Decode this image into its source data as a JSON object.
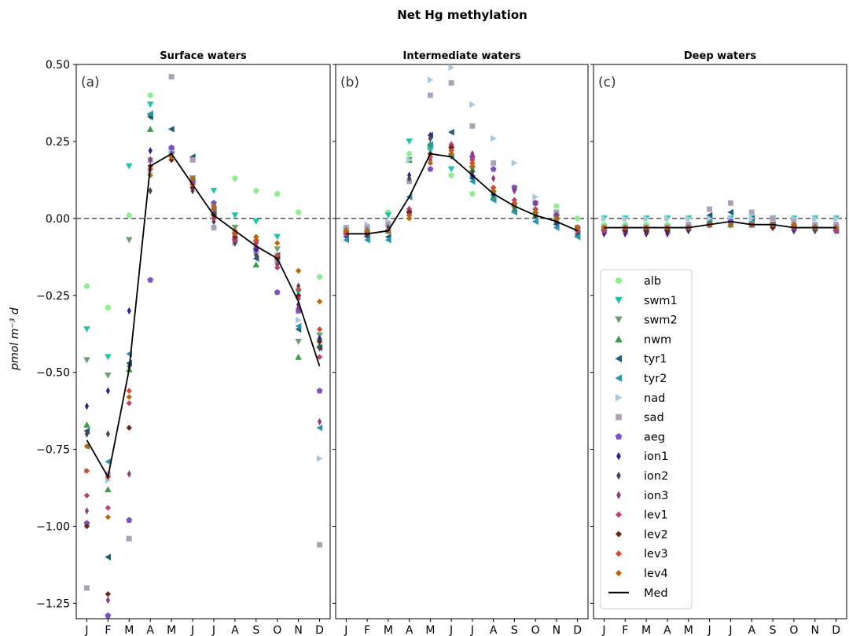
{
  "chart_data": {
    "type": "scatter",
    "title": "Net Hg methylation",
    "ylabel": "pmol m⁻³ d",
    "ylim": [
      -1.3,
      0.5
    ],
    "yticks": [
      0.5,
      0.25,
      0.0,
      -0.25,
      -0.5,
      -0.75,
      -1.0,
      -1.25
    ],
    "ytick_labels": [
      "0.50",
      "0.25",
      "0.00",
      "−0.25",
      "−0.50",
      "−0.75",
      "−1.00",
      "−1.25"
    ],
    "categories": [
      "J",
      "F",
      "M",
      "A",
      "M",
      "J",
      "J",
      "A",
      "S",
      "O",
      "N",
      "D"
    ],
    "reference_line": 0.0,
    "legend_placement": "lower-right of panel (c)",
    "styles": {
      "alb": {
        "color": "#90ee90",
        "marker": "o"
      },
      "swm1": {
        "color": "#1cc4a8",
        "marker": "v"
      },
      "swm2": {
        "color": "#6e9c74",
        "marker": "v"
      },
      "nwm": {
        "color": "#3c9c46",
        "marker": "^"
      },
      "tyr1": {
        "color": "#1f5f74",
        "marker": "<"
      },
      "tyr2": {
        "color": "#2d94b0",
        "marker": "<"
      },
      "nad": {
        "color": "#a8c8dc",
        "marker": ">"
      },
      "sad": {
        "color": "#aca0b8",
        "marker": "s"
      },
      "aeg": {
        "color": "#7b52c0",
        "marker": "p"
      },
      "ion1": {
        "color": "#3a1d8c",
        "marker": "d"
      },
      "ion2": {
        "color": "#4a4456",
        "marker": "d"
      },
      "ion3": {
        "color": "#8c3c7c",
        "marker": "d"
      },
      "lev1": {
        "color": "#c03c70",
        "marker": "D"
      },
      "lev2": {
        "color": "#6a2418",
        "marker": "D"
      },
      "lev3": {
        "color": "#d04c30",
        "marker": "D"
      },
      "lev4": {
        "color": "#b8660c",
        "marker": "D"
      },
      "Med": {
        "color": "#000000",
        "marker": "line"
      }
    },
    "panels": [
      {
        "title": "Surface waters",
        "label": "(a)",
        "series": [
          {
            "name": "alb",
            "values": [
              -0.22,
              -0.29,
              0.01,
              0.4,
              0.22,
              0.13,
              0.02,
              0.13,
              0.09,
              0.08,
              0.02,
              -0.19
            ]
          },
          {
            "name": "swm1",
            "values": [
              -0.36,
              -0.45,
              0.17,
              0.37,
              0.22,
              0.13,
              0.09,
              0.01,
              -0.01,
              -0.06,
              -0.24,
              -0.4
            ]
          },
          {
            "name": "swm2",
            "values": [
              -0.46,
              -0.51,
              -0.07,
              0.33,
              0.21,
              0.13,
              0.03,
              -0.03,
              -0.08,
              -0.1,
              -0.4,
              -0.38
            ]
          },
          {
            "name": "nwm",
            "values": [
              -0.67,
              -0.88,
              -0.49,
              0.29,
              0.22,
              0.12,
              0.02,
              -0.04,
              -0.15,
              -0.12,
              -0.45,
              -0.41
            ]
          },
          {
            "name": "tyr1",
            "values": [
              -0.69,
              -1.1,
              -0.47,
              0.33,
              0.29,
              0.2,
              0.02,
              -0.07,
              -0.13,
              -0.12,
              -0.36,
              -0.42
            ]
          },
          {
            "name": "tyr2",
            "values": [
              -0.74,
              -0.79,
              -0.44,
              0.34,
              0.22,
              0.12,
              0.03,
              -0.07,
              -0.1,
              -0.14,
              -0.35,
              -0.68
            ]
          },
          {
            "name": "nad",
            "values": [
              -0.82,
              -0.85,
              -1.04,
              0.15,
              0.22,
              0.12,
              0.03,
              -0.08,
              -0.1,
              -0.12,
              -0.33,
              -0.78
            ]
          },
          {
            "name": "sad",
            "values": [
              -1.2,
              -0.83,
              -1.04,
              0.19,
              0.46,
              0.19,
              -0.03,
              -0.06,
              -0.11,
              -0.14,
              -0.3,
              -1.06
            ]
          },
          {
            "name": "aeg",
            "values": [
              -0.99,
              -1.29,
              -0.98,
              -0.2,
              0.23,
              0.12,
              0.05,
              -0.07,
              -0.1,
              -0.24,
              -0.3,
              -0.56
            ]
          },
          {
            "name": "ion1",
            "values": [
              -0.61,
              -0.56,
              -0.3,
              0.22,
              0.21,
              0.11,
              0.0,
              -0.05,
              -0.1,
              -0.13,
              -0.28,
              -0.39
            ]
          },
          {
            "name": "ion2",
            "values": [
              -0.7,
              -0.7,
              -0.48,
              0.09,
              0.2,
              0.09,
              -0.01,
              -0.08,
              -0.12,
              -0.13,
              -0.22,
              -0.42
            ]
          },
          {
            "name": "ion3",
            "values": [
              -0.95,
              -1.24,
              -0.83,
              0.19,
              0.21,
              0.11,
              0.01,
              -0.06,
              -0.09,
              -0.15,
              -0.29,
              -0.66
            ]
          },
          {
            "name": "lev1",
            "values": [
              -0.9,
              -0.94,
              -0.6,
              0.16,
              0.2,
              0.1,
              0.0,
              -0.07,
              -0.08,
              -0.16,
              -0.26,
              -0.45
            ]
          },
          {
            "name": "lev2",
            "values": [
              -1.0,
              -1.22,
              -0.68,
              0.17,
              0.19,
              0.1,
              0.01,
              -0.06,
              -0.06,
              -0.13,
              -0.25,
              -0.4
            ]
          },
          {
            "name": "lev3",
            "values": [
              -0.82,
              -0.84,
              -0.56,
              0.16,
              0.2,
              0.11,
              0.03,
              -0.05,
              -0.07,
              -0.12,
              -0.23,
              -0.36
            ]
          },
          {
            "name": "lev4",
            "values": [
              -0.74,
              -0.97,
              -0.58,
              0.14,
              0.2,
              0.13,
              0.04,
              -0.04,
              -0.06,
              -0.08,
              -0.17,
              -0.27
            ]
          },
          {
            "name": "Med",
            "values": [
              -0.72,
              -0.84,
              -0.49,
              0.17,
              0.21,
              0.11,
              0.01,
              -0.04,
              -0.09,
              -0.13,
              -0.27,
              -0.48
            ]
          }
        ]
      },
      {
        "title": "Intermediate waters",
        "label": "(b)",
        "series": [
          {
            "name": "alb",
            "values": [
              -0.03,
              -0.03,
              0.02,
              0.21,
              0.24,
              0.14,
              0.08,
              0.07,
              0.04,
              0.03,
              0.04,
              0.0
            ]
          },
          {
            "name": "swm1",
            "values": [
              -0.04,
              -0.04,
              0.01,
              0.25,
              0.22,
              0.16,
              0.13,
              0.07,
              0.03,
              0.01,
              0.0,
              -0.04
            ]
          },
          {
            "name": "swm2",
            "values": [
              -0.05,
              -0.05,
              -0.03,
              0.19,
              0.23,
              0.2,
              0.16,
              0.08,
              0.04,
              0.01,
              -0.01,
              -0.05
            ]
          },
          {
            "name": "nwm",
            "values": [
              -0.04,
              -0.05,
              -0.04,
              0.19,
              0.24,
              0.21,
              0.16,
              0.07,
              0.03,
              0.01,
              -0.01,
              -0.05
            ]
          },
          {
            "name": "tyr1",
            "values": [
              -0.06,
              -0.06,
              -0.06,
              0.07,
              0.27,
              0.28,
              0.13,
              0.06,
              0.02,
              -0.01,
              -0.02,
              -0.05
            ]
          },
          {
            "name": "tyr2",
            "values": [
              -0.07,
              -0.07,
              -0.07,
              0.07,
              0.24,
              0.2,
              0.12,
              0.06,
              0.02,
              -0.01,
              -0.03,
              -0.06
            ]
          },
          {
            "name": "nad",
            "values": [
              -0.04,
              -0.02,
              -0.01,
              0.19,
              0.45,
              0.49,
              0.37,
              0.26,
              0.18,
              0.07,
              0.02,
              -0.04
            ]
          },
          {
            "name": "sad",
            "values": [
              -0.03,
              -0.03,
              -0.02,
              0.12,
              0.4,
              0.44,
              0.3,
              0.18,
              0.1,
              0.05,
              0.02,
              -0.03
            ]
          },
          {
            "name": "aeg",
            "values": [
              -0.05,
              -0.05,
              -0.04,
              0.02,
              0.16,
              0.23,
              0.2,
              0.16,
              0.1,
              0.05,
              0.01,
              -0.03
            ]
          },
          {
            "name": "ion1",
            "values": [
              -0.05,
              -0.05,
              -0.04,
              0.14,
              0.27,
              0.22,
              0.14,
              0.08,
              0.04,
              0.01,
              -0.01,
              -0.04
            ]
          },
          {
            "name": "ion2",
            "values": [
              -0.04,
              -0.04,
              -0.03,
              0.13,
              0.26,
              0.22,
              0.15,
              0.09,
              0.05,
              0.02,
              0.0,
              -0.04
            ]
          },
          {
            "name": "ion3",
            "values": [
              -0.05,
              -0.05,
              -0.04,
              0.03,
              0.19,
              0.24,
              0.21,
              0.13,
              0.09,
              0.05,
              0.01,
              -0.03
            ]
          },
          {
            "name": "lev1",
            "values": [
              -0.05,
              -0.05,
              -0.04,
              0.03,
              0.2,
              0.24,
              0.19,
              0.1,
              0.06,
              0.03,
              0.0,
              -0.04
            ]
          },
          {
            "name": "lev2",
            "values": [
              -0.04,
              -0.05,
              -0.04,
              0.02,
              0.21,
              0.23,
              0.18,
              0.1,
              0.05,
              0.02,
              0.0,
              -0.03
            ]
          },
          {
            "name": "lev3",
            "values": [
              -0.04,
              -0.04,
              -0.04,
              0.01,
              0.2,
              0.22,
              0.18,
              0.1,
              0.05,
              0.02,
              0.0,
              -0.03
            ]
          },
          {
            "name": "lev4",
            "values": [
              -0.04,
              -0.04,
              -0.04,
              0.0,
              0.18,
              0.21,
              0.17,
              0.09,
              0.04,
              0.02,
              0.0,
              -0.03
            ]
          },
          {
            "name": "Med",
            "values": [
              -0.05,
              -0.05,
              -0.04,
              0.07,
              0.21,
              0.2,
              0.14,
              0.08,
              0.04,
              0.01,
              -0.01,
              -0.04
            ]
          }
        ]
      },
      {
        "title": "Deep waters",
        "label": "(c)",
        "series": [
          {
            "name": "alb",
            "values": [
              -0.02,
              -0.02,
              -0.02,
              -0.02,
              -0.02,
              -0.01,
              -0.01,
              -0.01,
              -0.02,
              -0.02,
              -0.02,
              -0.02
            ]
          },
          {
            "name": "swm1",
            "values": [
              0.0,
              0.0,
              0.0,
              0.0,
              0.0,
              0.0,
              0.0,
              0.0,
              0.0,
              0.0,
              0.0,
              0.0
            ]
          },
          {
            "name": "swm2",
            "values": [
              -0.03,
              -0.03,
              -0.03,
              -0.03,
              -0.03,
              -0.02,
              -0.02,
              -0.02,
              -0.02,
              -0.03,
              -0.03,
              -0.03
            ]
          },
          {
            "name": "nwm",
            "values": [
              -0.03,
              -0.03,
              -0.03,
              -0.03,
              -0.03,
              -0.02,
              -0.02,
              -0.02,
              -0.02,
              -0.03,
              -0.03,
              -0.03
            ]
          },
          {
            "name": "tyr1",
            "values": [
              -0.04,
              -0.04,
              -0.04,
              -0.04,
              -0.03,
              0.01,
              0.02,
              0.0,
              -0.02,
              -0.03,
              -0.03,
              -0.04
            ]
          },
          {
            "name": "tyr2",
            "values": [
              -0.04,
              -0.04,
              -0.04,
              -0.04,
              -0.03,
              -0.01,
              -0.01,
              -0.02,
              -0.02,
              -0.03,
              -0.03,
              -0.03
            ]
          },
          {
            "name": "nad",
            "values": [
              0.0,
              0.0,
              0.0,
              0.0,
              0.0,
              0.0,
              0.0,
              0.0,
              0.0,
              0.0,
              0.0,
              0.0
            ]
          },
          {
            "name": "sad",
            "values": [
              -0.03,
              -0.03,
              -0.03,
              -0.03,
              -0.02,
              0.03,
              0.05,
              0.02,
              0.0,
              -0.01,
              -0.02,
              -0.02
            ]
          },
          {
            "name": "aeg",
            "values": [
              -0.04,
              -0.04,
              -0.04,
              -0.04,
              -0.03,
              -0.02,
              -0.01,
              -0.02,
              -0.02,
              -0.03,
              -0.03,
              -0.04
            ]
          },
          {
            "name": "ion1",
            "values": [
              -0.05,
              -0.05,
              -0.05,
              -0.05,
              -0.04,
              -0.02,
              -0.02,
              -0.02,
              -0.03,
              -0.04,
              -0.04,
              -0.04
            ]
          },
          {
            "name": "ion2",
            "values": [
              -0.04,
              -0.04,
              -0.04,
              -0.04,
              -0.03,
              -0.02,
              -0.02,
              -0.02,
              -0.03,
              -0.03,
              -0.04,
              -0.04
            ]
          },
          {
            "name": "ion3",
            "values": [
              -0.04,
              -0.04,
              -0.04,
              -0.04,
              -0.03,
              -0.02,
              -0.02,
              -0.02,
              -0.03,
              -0.03,
              -0.03,
              -0.03
            ]
          },
          {
            "name": "lev1",
            "values": [
              -0.04,
              -0.04,
              -0.04,
              -0.04,
              -0.03,
              -0.02,
              -0.02,
              -0.02,
              -0.03,
              -0.03,
              -0.03,
              -0.04
            ]
          },
          {
            "name": "lev2",
            "values": [
              -0.03,
              -0.04,
              -0.04,
              -0.04,
              -0.03,
              -0.02,
              -0.02,
              -0.02,
              -0.03,
              -0.03,
              -0.03,
              -0.03
            ]
          },
          {
            "name": "lev3",
            "values": [
              -0.03,
              -0.03,
              -0.03,
              -0.03,
              -0.03,
              -0.02,
              -0.02,
              -0.02,
              -0.02,
              -0.03,
              -0.03,
              -0.03
            ]
          },
          {
            "name": "lev4",
            "values": [
              -0.03,
              -0.03,
              -0.03,
              -0.03,
              -0.03,
              -0.02,
              -0.02,
              -0.02,
              -0.02,
              -0.02,
              -0.03,
              -0.03
            ]
          },
          {
            "name": "Med",
            "values": [
              -0.03,
              -0.03,
              -0.03,
              -0.03,
              -0.03,
              -0.02,
              -0.01,
              -0.02,
              -0.02,
              -0.03,
              -0.03,
              -0.03
            ]
          }
        ]
      }
    ]
  }
}
